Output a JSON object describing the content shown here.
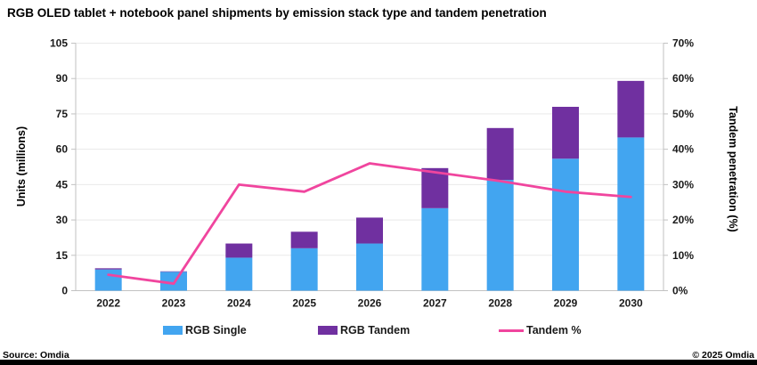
{
  "title": "RGB OLED tablet + notebook panel shipments by emission stack type and tandem penetration",
  "source": "Source: Omdia",
  "copyright": "© 2025 Omdia",
  "colors": {
    "single": "#42A5F0",
    "tandem": "#7030A0",
    "line": "#F0459E",
    "grid": "#E9E9E9",
    "axis": "#C2C2C2"
  },
  "legend": [
    {
      "label": "RGB Single"
    },
    {
      "label": "RGB Tandem"
    },
    {
      "label": "Tandem %"
    }
  ],
  "chart_data": {
    "type": "combo (stacked bar + line, dual axis)",
    "categories": [
      "2022",
      "2023",
      "2024",
      "2025",
      "2026",
      "2027",
      "2028",
      "2029",
      "2030"
    ],
    "series": [
      {
        "name": "RGB Single",
        "type": "bar",
        "axis": "left",
        "values": [
          9,
          8,
          14,
          18,
          20,
          35,
          47,
          56,
          65
        ]
      },
      {
        "name": "RGB Tandem",
        "type": "bar",
        "axis": "left",
        "values": [
          0.5,
          0.2,
          6,
          7,
          11,
          17,
          22,
          22,
          24
        ]
      },
      {
        "name": "Tandem %",
        "type": "line",
        "axis": "right",
        "values": [
          4.5,
          2,
          30,
          28,
          36,
          33.5,
          31,
          28,
          26.5
        ]
      }
    ],
    "title": "RGB OLED tablet + notebook panel shipments by emission stack type and tandem penetration",
    "xlabel": "",
    "ylabel_left": "Units (millions)",
    "ylabel_right": "Tandem penetration (%)",
    "ylim_left": [
      0,
      105
    ],
    "ytick_step_left": 15,
    "ylim_right": [
      0,
      70
    ],
    "ytick_step_right": 10,
    "ytick_suffix_right": "%",
    "grid": true,
    "legend_position": "bottom"
  }
}
